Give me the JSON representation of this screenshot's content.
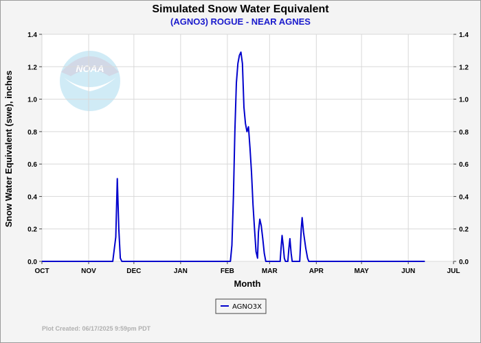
{
  "chart_data": {
    "type": "line",
    "title": "Simulated Snow Water Equivalent",
    "subtitle": "(AGNO3) ROGUE - NEAR AGNES",
    "xlabel": "Month",
    "ylabel": "Snow Water Equivalent (swe),  inches",
    "ylim": [
      0,
      1.4
    ],
    "yticks": [
      "0.0",
      "0.2",
      "0.4",
      "0.6",
      "0.8",
      "1.0",
      "1.2",
      "1.4"
    ],
    "xlim": [
      0,
      273
    ],
    "xticks": [
      {
        "label": "OCT",
        "value": 0
      },
      {
        "label": "NOV",
        "value": 31
      },
      {
        "label": "DEC",
        "value": 61
      },
      {
        "label": "JAN",
        "value": 92
      },
      {
        "label": "FEB",
        "value": 123
      },
      {
        "label": "MAR",
        "value": 151
      },
      {
        "label": "APR",
        "value": 182
      },
      {
        "label": "MAY",
        "value": 212
      },
      {
        "label": "JUN",
        "value": 243
      },
      {
        "label": "JUL",
        "value": 273
      }
    ],
    "grid": true,
    "legend_placement": "bottom-center",
    "series": [
      {
        "name": "AGNO3X",
        "color": "#0000cc",
        "points": [
          [
            0,
            0
          ],
          [
            47,
            0
          ],
          [
            49,
            0.15
          ],
          [
            50,
            0.51
          ],
          [
            51,
            0.2
          ],
          [
            52,
            0.02
          ],
          [
            53,
            0
          ],
          [
            125,
            0
          ],
          [
            126,
            0.1
          ],
          [
            127,
            0.4
          ],
          [
            128,
            0.8
          ],
          [
            129,
            1.1
          ],
          [
            130,
            1.22
          ],
          [
            131,
            1.27
          ],
          [
            132,
            1.29
          ],
          [
            133,
            1.22
          ],
          [
            134,
            0.95
          ],
          [
            135,
            0.85
          ],
          [
            136,
            0.8
          ],
          [
            137,
            0.83
          ],
          [
            138,
            0.7
          ],
          [
            139,
            0.55
          ],
          [
            140,
            0.35
          ],
          [
            141,
            0.2
          ],
          [
            142,
            0.06
          ],
          [
            143,
            0.02
          ],
          [
            143.6,
            0.18
          ],
          [
            144.5,
            0.26
          ],
          [
            145.5,
            0.22
          ],
          [
            146.5,
            0.14
          ],
          [
            147.5,
            0.05
          ],
          [
            148.5,
            0
          ],
          [
            158,
            0
          ],
          [
            158.6,
            0.08
          ],
          [
            159.3,
            0.16
          ],
          [
            160,
            0.1
          ],
          [
            160.8,
            0.02
          ],
          [
            161.5,
            0
          ],
          [
            163.1,
            0
          ],
          [
            163.8,
            0.08
          ],
          [
            164.5,
            0.14
          ],
          [
            165.3,
            0.05
          ],
          [
            166,
            0
          ],
          [
            171,
            0
          ],
          [
            172,
            0.2
          ],
          [
            172.6,
            0.27
          ],
          [
            173.5,
            0.18
          ],
          [
            175,
            0.08
          ],
          [
            176.2,
            0.02
          ],
          [
            177,
            0
          ],
          [
            254,
            0
          ]
        ]
      }
    ]
  },
  "logo": {
    "text": "NOAA",
    "name": "noaa-logo"
  },
  "footer": {
    "text": "Plot Created: 06/17/2025 9:59pm PDT"
  }
}
